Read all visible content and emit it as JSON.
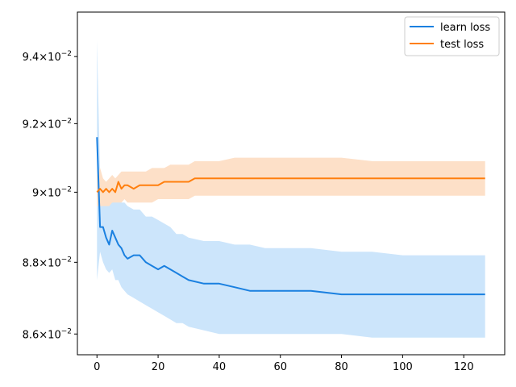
{
  "chart_data": {
    "type": "line",
    "title": "",
    "xlabel": "",
    "ylabel": "",
    "xlim": [
      -6.4,
      133.4
    ],
    "ylim": [
      0.08543,
      0.09535
    ],
    "y_scale": "log",
    "grid": false,
    "legend_position": "top-right",
    "x_ticks": [
      0,
      20,
      40,
      60,
      80,
      100,
      120
    ],
    "x_tick_labels": [
      "0",
      "20",
      "40",
      "60",
      "80",
      "100",
      "120"
    ],
    "y_ticks": [
      0.086,
      0.088,
      0.09,
      0.092,
      0.094
    ],
    "y_tick_mantissas": [
      "8.6",
      "8.8",
      "9",
      "9.2",
      "9.4"
    ],
    "y_tick_base": "10",
    "y_tick_exponent": "−2",
    "y_tick_times": "×",
    "series": [
      {
        "name": "learn loss",
        "color": "#1a80e0",
        "band_color": "#cce5fb",
        "x": [
          0,
          1,
          2,
          3,
          4,
          5,
          6,
          7,
          8,
          9,
          10,
          12,
          14,
          16,
          18,
          20,
          22,
          24,
          26,
          28,
          30,
          35,
          40,
          45,
          50,
          55,
          60,
          70,
          80,
          90,
          100,
          110,
          115,
          120,
          127
        ],
        "values": [
          0.0916,
          0.089,
          0.089,
          0.0887,
          0.0885,
          0.0889,
          0.0887,
          0.0885,
          0.0884,
          0.0882,
          0.0881,
          0.0882,
          0.0882,
          0.088,
          0.0879,
          0.0878,
          0.0879,
          0.0878,
          0.0877,
          0.0876,
          0.0875,
          0.0874,
          0.0874,
          0.0873,
          0.0872,
          0.0872,
          0.0872,
          0.0872,
          0.0871,
          0.0871,
          0.0871,
          0.0871,
          0.0871,
          0.0871,
          0.0871
        ],
        "upper": [
          0.0945,
          0.0905,
          0.0902,
          0.0901,
          0.09,
          0.09,
          0.0899,
          0.0898,
          0.0897,
          0.0897,
          0.0896,
          0.0895,
          0.0895,
          0.0893,
          0.0893,
          0.0892,
          0.0891,
          0.089,
          0.0888,
          0.0888,
          0.0887,
          0.0886,
          0.0886,
          0.0885,
          0.0885,
          0.0884,
          0.0884,
          0.0884,
          0.0883,
          0.0883,
          0.0882,
          0.0882,
          0.0882,
          0.0882,
          0.0882
        ],
        "lower": [
          0.0875,
          0.0883,
          0.088,
          0.0878,
          0.0877,
          0.0878,
          0.0875,
          0.0875,
          0.0873,
          0.0872,
          0.0871,
          0.087,
          0.0869,
          0.0868,
          0.0867,
          0.0866,
          0.0865,
          0.0864,
          0.0863,
          0.0863,
          0.0862,
          0.0861,
          0.086,
          0.086,
          0.086,
          0.086,
          0.086,
          0.086,
          0.086,
          0.0859,
          0.0859,
          0.0859,
          0.0859,
          0.0859,
          0.0859
        ]
      },
      {
        "name": "test loss",
        "color": "#ff7f0e",
        "band_color": "#fde0c8",
        "x": [
          0,
          1,
          2,
          3,
          4,
          5,
          6,
          7,
          8,
          9,
          10,
          12,
          14,
          16,
          18,
          20,
          22,
          24,
          26,
          28,
          30,
          32,
          35,
          40,
          45,
          50,
          55,
          60,
          70,
          75,
          80,
          90,
          100,
          110,
          120,
          127
        ],
        "values": [
          0.09,
          0.0901,
          0.09,
          0.0901,
          0.09,
          0.0901,
          0.09,
          0.0903,
          0.0901,
          0.0902,
          0.0902,
          0.0901,
          0.0902,
          0.0902,
          0.0902,
          0.0902,
          0.0903,
          0.0903,
          0.0903,
          0.0903,
          0.0903,
          0.0904,
          0.0904,
          0.0904,
          0.0904,
          0.0904,
          0.0904,
          0.0904,
          0.0904,
          0.0904,
          0.0904,
          0.0904,
          0.0904,
          0.0904,
          0.0904,
          0.0904
        ],
        "upper": [
          0.0905,
          0.0907,
          0.0904,
          0.0903,
          0.0904,
          0.0905,
          0.0904,
          0.0905,
          0.0906,
          0.0906,
          0.0906,
          0.0906,
          0.0906,
          0.0906,
          0.0907,
          0.0907,
          0.0907,
          0.0908,
          0.0908,
          0.0908,
          0.0908,
          0.0909,
          0.0909,
          0.0909,
          0.091,
          0.091,
          0.091,
          0.091,
          0.091,
          0.091,
          0.091,
          0.0909,
          0.0909,
          0.0909,
          0.0909,
          0.0909
        ],
        "lower": [
          0.0896,
          0.0896,
          0.0896,
          0.0896,
          0.0896,
          0.0897,
          0.0897,
          0.0897,
          0.0897,
          0.0898,
          0.0897,
          0.0897,
          0.0897,
          0.0897,
          0.0897,
          0.0898,
          0.0898,
          0.0898,
          0.0898,
          0.0898,
          0.0898,
          0.0899,
          0.0899,
          0.0899,
          0.0899,
          0.0899,
          0.0899,
          0.0899,
          0.0899,
          0.0899,
          0.0899,
          0.0899,
          0.0899,
          0.0899,
          0.0899,
          0.0899
        ]
      }
    ]
  }
}
